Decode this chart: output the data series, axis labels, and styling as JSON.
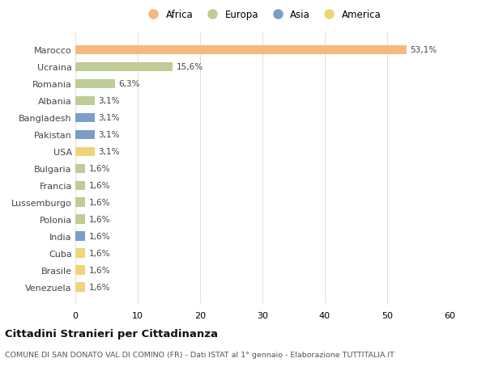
{
  "countries": [
    "Marocco",
    "Ucraina",
    "Romania",
    "Albania",
    "Bangladesh",
    "Pakistan",
    "USA",
    "Bulgaria",
    "Francia",
    "Lussemburgo",
    "Polonia",
    "India",
    "Cuba",
    "Brasile",
    "Venezuela"
  ],
  "values": [
    53.1,
    15.6,
    6.3,
    3.1,
    3.1,
    3.1,
    3.1,
    1.6,
    1.6,
    1.6,
    1.6,
    1.6,
    1.6,
    1.6,
    1.6
  ],
  "labels": [
    "53,1%",
    "15,6%",
    "6,3%",
    "3,1%",
    "3,1%",
    "3,1%",
    "3,1%",
    "1,6%",
    "1,6%",
    "1,6%",
    "1,6%",
    "1,6%",
    "1,6%",
    "1,6%",
    "1,6%"
  ],
  "continents": [
    "Africa",
    "Europa",
    "Europa",
    "Europa",
    "Asia",
    "Asia",
    "America",
    "Europa",
    "Europa",
    "Europa",
    "Europa",
    "Asia",
    "America",
    "America",
    "America"
  ],
  "colors": {
    "Africa": "#F5B97F",
    "Europa": "#BFCC96",
    "Asia": "#7B9EC7",
    "America": "#EDD57A"
  },
  "xlim": [
    0,
    60
  ],
  "xticks": [
    0,
    10,
    20,
    30,
    40,
    50,
    60
  ],
  "title": "Cittadini Stranieri per Cittadinanza",
  "subtitle": "COMUNE DI SAN DONATO VAL DI COMINO (FR) - Dati ISTAT al 1° gennaio - Elaborazione TUTTITALIA.IT",
  "background_color": "#ffffff",
  "grid_color": "#e0e0e0",
  "bar_height": 0.55,
  "legend_order": [
    "Africa",
    "Europa",
    "Asia",
    "America"
  ]
}
